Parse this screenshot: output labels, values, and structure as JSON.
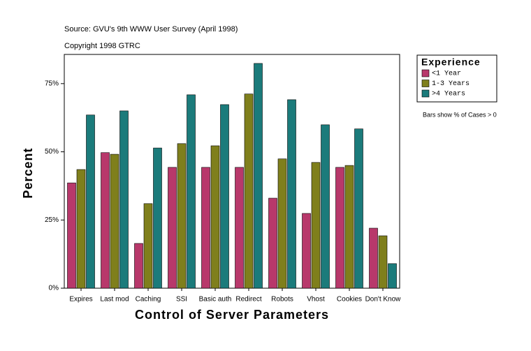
{
  "chart_data": {
    "type": "bar",
    "title": "Source: GVU's 9th WWW User Survey (April 1998)",
    "subtitle": "Copyright 1998 GTRC",
    "x_label": "Control of Server Parameters",
    "y_label": "Percent",
    "legend_title": "Experience",
    "annotation": "Bars show % of Cases > 0",
    "categories": [
      "Expires",
      "Last mod",
      "Caching",
      "SSI",
      "Basic auth",
      "Redirect",
      "Robots",
      "Vhost",
      "Cookies",
      "Don't Know"
    ],
    "series": [
      {
        "name": "<1 Year",
        "color": "#b8386b",
        "values": [
          38.6,
          49.7,
          16.4,
          44.3,
          44.3,
          44.3,
          33.0,
          27.4,
          44.3,
          22.0
        ]
      },
      {
        "name": "1-3 Years",
        "color": "#7f7f1c",
        "values": [
          43.5,
          49.1,
          31.0,
          53.0,
          52.2,
          71.2,
          47.4,
          46.1,
          45.0,
          19.2
        ]
      },
      {
        "name": ">4 Years",
        "color": "#1b7b7b",
        "values": [
          63.5,
          65.0,
          51.4,
          70.9,
          67.3,
          82.4,
          69.1,
          59.9,
          58.4,
          9.0
        ]
      }
    ],
    "ylim": [
      0,
      85.7
    ],
    "yticks": [
      {
        "value": 0,
        "label": "0%"
      },
      {
        "value": 25,
        "label": "25%"
      },
      {
        "value": 50,
        "label": "50%"
      },
      {
        "value": 75,
        "label": "75%"
      }
    ],
    "legend_position": "right"
  }
}
